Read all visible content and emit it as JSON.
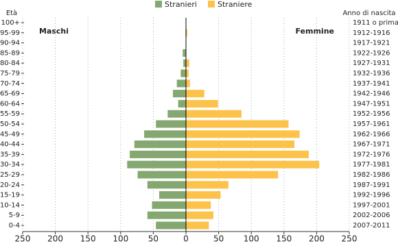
{
  "chart_data": {
    "type": "pyramid",
    "y_label": "Età",
    "y2_label": "Anno di nascita",
    "left_label": "Maschi",
    "right_label": "Femmine",
    "categories": [
      "100+",
      "95-99",
      "90-94",
      "85-89",
      "80-84",
      "75-79",
      "70-74",
      "65-69",
      "60-64",
      "55-59",
      "50-54",
      "45-49",
      "40-44",
      "35-39",
      "30-34",
      "25-29",
      "20-24",
      "15-19",
      "10-14",
      "5-9",
      "0-4"
    ],
    "birth_years": [
      "1911 o prima",
      "1912-1916",
      "1917-1921",
      "1922-1926",
      "1927-1931",
      "1932-1936",
      "1937-1941",
      "1942-1946",
      "1947-1951",
      "1952-1956",
      "1957-1961",
      "1962-1966",
      "1967-1971",
      "1972-1976",
      "1977-1981",
      "1982-1986",
      "1987-1991",
      "1992-1996",
      "1997-2001",
      "2002-2006",
      "2007-2011"
    ],
    "series": [
      {
        "name": "Stranieri",
        "color": "#84a870",
        "side": "left",
        "values": [
          0,
          0,
          0,
          5,
          4,
          8,
          14,
          20,
          12,
          28,
          46,
          64,
          79,
          86,
          90,
          74,
          59,
          41,
          52,
          59,
          46
        ]
      },
      {
        "name": "Straniere",
        "color": "#fcc249",
        "side": "right",
        "values": [
          0,
          2,
          0,
          0,
          5,
          4,
          6,
          28,
          49,
          85,
          157,
          174,
          166,
          188,
          204,
          141,
          65,
          53,
          38,
          42,
          35
        ]
      }
    ],
    "xlim": [
      -250,
      250
    ],
    "xticks": [
      {
        "value": -250,
        "label": "250"
      },
      {
        "value": -200,
        "label": "200"
      },
      {
        "value": -150,
        "label": "150"
      },
      {
        "value": -100,
        "label": "100"
      },
      {
        "value": -50,
        "label": "50"
      },
      0,
      50,
      100,
      150,
      200,
      250
    ],
    "grid": true
  }
}
